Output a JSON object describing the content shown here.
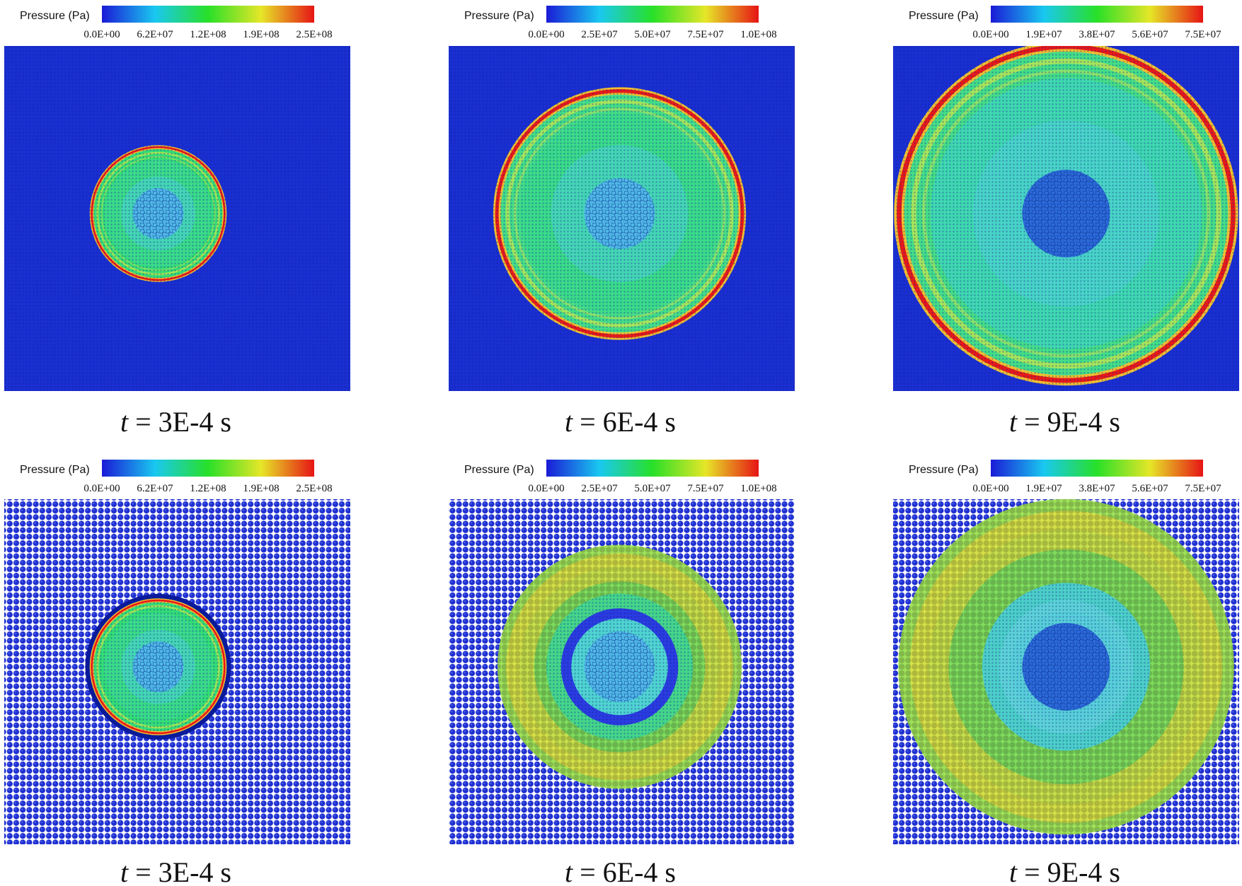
{
  "figure": {
    "legend_title": "Pressure (Pa)",
    "colors": {
      "background_blue": "#1a2fd1",
      "cyan": "#2fe6e6",
      "green": "#3fdd3f",
      "yellow": "#e6f032",
      "red": "#e61a1a",
      "dark_navy": "#0b1a9a"
    },
    "panels": [
      {
        "caption_t": "t",
        "caption_rest": " = 3E-4 s",
        "time_s": 0.0003,
        "style": "fine",
        "ticks": [
          "0.0E+00",
          "6.2E+07",
          "1.2E+08",
          "1.9E+08",
          "2.5E+08"
        ],
        "pmax_pa": 250000000.0
      },
      {
        "caption_t": "t",
        "caption_rest": " = 6E-4 s",
        "time_s": 0.0006,
        "style": "fine",
        "ticks": [
          "0.0E+00",
          "2.5E+07",
          "5.0E+07",
          "7.5E+07",
          "1.0E+08"
        ],
        "pmax_pa": 100000000.0
      },
      {
        "caption_t": "t",
        "caption_rest": " = 9E-4 s",
        "time_s": 0.0009,
        "style": "fine",
        "ticks": [
          "0.0E+00",
          "1.9E+07",
          "3.8E+07",
          "5.6E+07",
          "7.5E+07"
        ],
        "pmax_pa": 75000000.0
      },
      {
        "caption_t": "t",
        "caption_rest": " = 3E-4 s",
        "time_s": 0.0003,
        "style": "coarse",
        "ticks": [
          "0.0E+00",
          "6.2E+07",
          "1.2E+08",
          "1.9E+08",
          "2.5E+08"
        ],
        "pmax_pa": 250000000.0
      },
      {
        "caption_t": "t",
        "caption_rest": " = 6E-4 s",
        "time_s": 0.0006,
        "style": "coarse",
        "ticks": [
          "0.0E+00",
          "2.5E+07",
          "5.0E+07",
          "7.5E+07",
          "1.0E+08"
        ],
        "pmax_pa": 100000000.0
      },
      {
        "caption_t": "t",
        "caption_rest": " = 9E-4 s",
        "time_s": 0.0009,
        "style": "coarse",
        "ticks": [
          "0.0E+00",
          "1.9E+07",
          "3.8E+07",
          "5.6E+07",
          "7.5E+07"
        ],
        "pmax_pa": 75000000.0
      }
    ]
  }
}
